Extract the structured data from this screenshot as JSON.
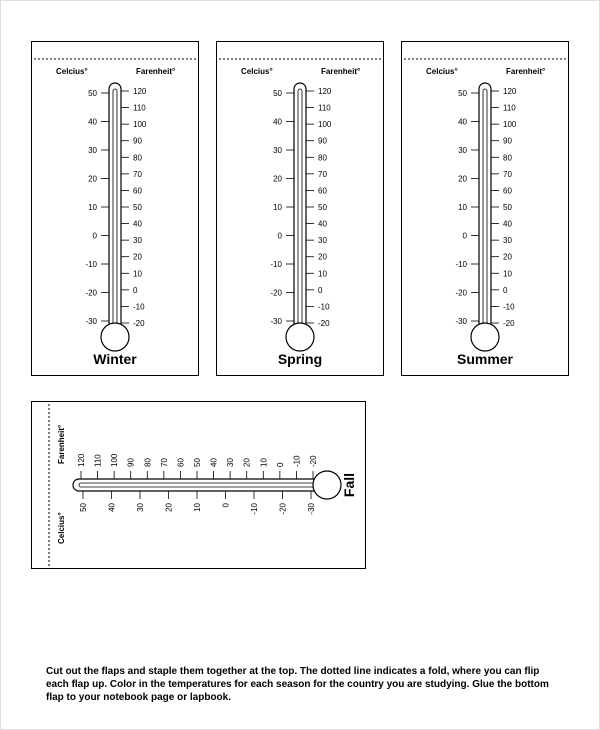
{
  "colors": {
    "stroke": "#000",
    "bg": "#fff",
    "card_stroke": "#000"
  },
  "scales": {
    "celsius_label": "Celcius°",
    "farenheit_label": "Farenheit°",
    "celsius": [
      50,
      40,
      30,
      20,
      10,
      0,
      -10,
      -20,
      -30
    ],
    "farenheit": [
      120,
      110,
      100,
      90,
      80,
      70,
      60,
      50,
      40,
      30,
      20,
      10,
      0,
      -10,
      -20
    ]
  },
  "cards": [
    {
      "title": "Winter"
    },
    {
      "title": "Spring"
    },
    {
      "title": "Summer"
    }
  ],
  "bottom_card": {
    "title": "Fall"
  },
  "instructions": "Cut out the flaps and staple them together at the top. The dotted line indicates a fold, where you can flip each flap up. Color in the temperatures for each season for the country you are studying. Glue the bottom flap to your notebook page or lapbook."
}
